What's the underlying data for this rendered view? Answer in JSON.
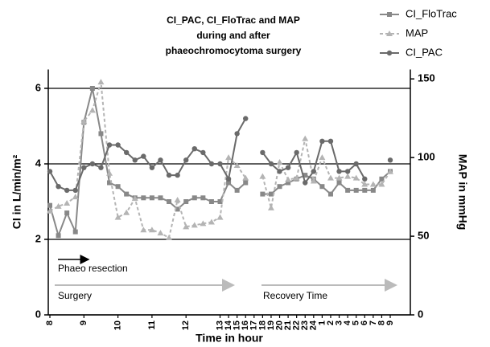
{
  "chart_data": {
    "type": "line",
    "title": [
      "CI_PAC, CI_FloTrac and MAP",
      "during and after",
      "phaeochromocytoma surgery"
    ],
    "x_label": "Time in hour",
    "y_label": "CI in L/min/m²",
    "y2_label": "MAP in mmHg",
    "categories": [
      "8",
      null,
      null,
      null,
      "9",
      null,
      null,
      null,
      "10",
      null,
      null,
      null,
      "11",
      null,
      null,
      null,
      "12",
      null,
      null,
      null,
      "13",
      "14",
      "15",
      "16",
      "17",
      "18",
      "19",
      "20",
      "21",
      "22",
      "23",
      "24",
      "1",
      "2",
      "3",
      "4",
      "5",
      "6",
      "7",
      "8",
      "9"
    ],
    "series": [
      {
        "name": "CI_FloTrac",
        "color": "#888888",
        "marker": "square",
        "values": [
          2.9,
          2.1,
          2.7,
          2.2,
          5.1,
          6.0,
          4.8,
          3.5,
          3.4,
          3.2,
          3.1,
          3.1,
          3.1,
          3.1,
          3.0,
          2.8,
          3.0,
          3.1,
          3.1,
          3.0,
          3.0,
          3.5,
          3.3,
          3.5,
          null,
          3.2,
          3.2,
          3.4,
          3.5,
          3.6,
          3.7,
          3.6,
          3.4,
          3.2,
          3.5,
          3.3,
          3.3,
          3.3,
          3.3,
          3.6,
          3.8
        ]
      },
      {
        "name": "MAP",
        "color": "#b4b4b4",
        "marker": "triangle",
        "dashed": true,
        "axis": "y2",
        "values": [
          66,
          69,
          71,
          75,
          123,
          130,
          148,
          90,
          62,
          65,
          74,
          54,
          54,
          52,
          49,
          73,
          56,
          57,
          58,
          59,
          62,
          100,
          95,
          87,
          null,
          88,
          68,
          97,
          86,
          87,
          112,
          85,
          100,
          87,
          87,
          88,
          87,
          83,
          83,
          83,
          91
        ]
      },
      {
        "name": "CI_PAC",
        "color": "#6a6a6a",
        "marker": "circle",
        "values": [
          3.8,
          3.4,
          3.3,
          3.3,
          3.9,
          4.0,
          3.9,
          4.5,
          4.5,
          4.3,
          4.1,
          4.2,
          3.9,
          4.1,
          3.7,
          3.7,
          4.1,
          4.4,
          4.3,
          4.0,
          4.0,
          3.6,
          4.8,
          5.2,
          null,
          4.3,
          4.0,
          3.8,
          3.9,
          4.3,
          3.5,
          3.8,
          4.6,
          4.6,
          3.8,
          3.8,
          4.0,
          3.6,
          null,
          null,
          4.1
        ]
      }
    ],
    "ylim": [
      0,
      6.5
    ],
    "yticks": [
      0,
      2,
      4,
      6
    ],
    "y2lim": [
      0,
      156
    ],
    "y2ticks": [
      0,
      50,
      100,
      150
    ],
    "grid": true,
    "legend": "top-right",
    "annotations": [
      "Phaeo resection",
      "Surgery",
      "Recovery Time"
    ]
  }
}
